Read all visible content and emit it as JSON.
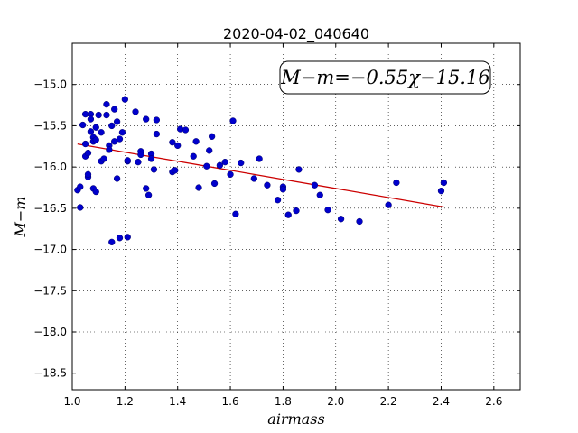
{
  "chart_data": {
    "type": "scatter",
    "title": "2020-04-02_040640",
    "xlabel": "airmass",
    "ylabel": "M−m",
    "xlim": [
      1.0,
      2.7
    ],
    "ylim": [
      -18.7,
      -14.5
    ],
    "y_inverted": true,
    "grid": true,
    "xticks": [
      1.0,
      1.2,
      1.4,
      1.6,
      1.8,
      2.0,
      2.2,
      2.4,
      2.6
    ],
    "xtick_labels": [
      "1.0",
      "1.2",
      "1.4",
      "1.6",
      "1.8",
      "2.0",
      "2.2",
      "2.4",
      "2.6"
    ],
    "yticks": [
      -15.0,
      -15.5,
      -16.0,
      -16.5,
      -17.0,
      -17.5,
      -18.0,
      -18.5
    ],
    "ytick_labels": [
      "−15.0",
      "−15.5",
      "−16.0",
      "−16.5",
      "−17.0",
      "−17.5",
      "−18.0",
      "−18.5"
    ],
    "annotation": "M−m=−0.55χ−15.16",
    "point_color": "#0000cc",
    "fit_color": "#cc0000",
    "fit": {
      "slope": -0.55,
      "intercept": -15.16,
      "x_range": [
        1.02,
        2.41
      ]
    },
    "points": [
      [
        1.02,
        -16.28
      ],
      [
        1.03,
        -16.24
      ],
      [
        1.03,
        -16.49
      ],
      [
        1.04,
        -15.49
      ],
      [
        1.05,
        -15.72
      ],
      [
        1.05,
        -15.87
      ],
      [
        1.05,
        -15.36
      ],
      [
        1.06,
        -16.12
      ],
      [
        1.06,
        -15.83
      ],
      [
        1.06,
        -16.09
      ],
      [
        1.07,
        -15.36
      ],
      [
        1.07,
        -15.57
      ],
      [
        1.07,
        -15.42
      ],
      [
        1.08,
        -15.64
      ],
      [
        1.08,
        -15.69
      ],
      [
        1.08,
        -16.26
      ],
      [
        1.09,
        -15.52
      ],
      [
        1.09,
        -16.3
      ],
      [
        1.09,
        -15.67
      ],
      [
        1.1,
        -15.37
      ],
      [
        1.11,
        -15.93
      ],
      [
        1.11,
        -15.58
      ],
      [
        1.12,
        -15.9
      ],
      [
        1.13,
        -15.24
      ],
      [
        1.13,
        -15.37
      ],
      [
        1.14,
        -15.74
      ],
      [
        1.14,
        -15.79
      ],
      [
        1.15,
        -16.91
      ],
      [
        1.15,
        -15.5
      ],
      [
        1.16,
        -15.69
      ],
      [
        1.16,
        -15.3
      ],
      [
        1.17,
        -15.45
      ],
      [
        1.17,
        -16.14
      ],
      [
        1.18,
        -16.86
      ],
      [
        1.18,
        -15.66
      ],
      [
        1.19,
        -15.58
      ],
      [
        1.2,
        -15.18
      ],
      [
        1.21,
        -16.85
      ],
      [
        1.21,
        -15.93
      ],
      [
        1.21,
        -15.92
      ],
      [
        1.24,
        -15.33
      ],
      [
        1.25,
        -15.94
      ],
      [
        1.26,
        -15.81
      ],
      [
        1.26,
        -15.85
      ],
      [
        1.28,
        -16.26
      ],
      [
        1.28,
        -15.42
      ],
      [
        1.29,
        -16.34
      ],
      [
        1.3,
        -15.84
      ],
      [
        1.3,
        -15.9
      ],
      [
        1.31,
        -16.03
      ],
      [
        1.32,
        -15.43
      ],
      [
        1.32,
        -15.6
      ],
      [
        1.38,
        -16.06
      ],
      [
        1.38,
        -15.7
      ],
      [
        1.39,
        -16.04
      ],
      [
        1.4,
        -15.74
      ],
      [
        1.41,
        -15.54
      ],
      [
        1.43,
        -15.55
      ],
      [
        1.46,
        -15.87
      ],
      [
        1.47,
        -15.69
      ],
      [
        1.48,
        -16.25
      ],
      [
        1.51,
        -15.99
      ],
      [
        1.52,
        -15.8
      ],
      [
        1.53,
        -15.63
      ],
      [
        1.54,
        -16.2
      ],
      [
        1.56,
        -15.98
      ],
      [
        1.58,
        -15.94
      ],
      [
        1.6,
        -16.09
      ],
      [
        1.61,
        -15.44
      ],
      [
        1.62,
        -16.57
      ],
      [
        1.64,
        -15.95
      ],
      [
        1.69,
        -16.14
      ],
      [
        1.71,
        -15.9
      ],
      [
        1.74,
        -16.22
      ],
      [
        1.78,
        -16.4
      ],
      [
        1.8,
        -16.24
      ],
      [
        1.8,
        -16.27
      ],
      [
        1.82,
        -16.58
      ],
      [
        1.85,
        -16.53
      ],
      [
        1.86,
        -16.03
      ],
      [
        1.92,
        -16.22
      ],
      [
        1.94,
        -16.34
      ],
      [
        1.97,
        -16.52
      ],
      [
        2.02,
        -16.63
      ],
      [
        2.09,
        -16.66
      ],
      [
        2.2,
        -16.46
      ],
      [
        2.23,
        -16.19
      ],
      [
        2.4,
        -16.29
      ],
      [
        2.41,
        -16.19
      ]
    ]
  }
}
